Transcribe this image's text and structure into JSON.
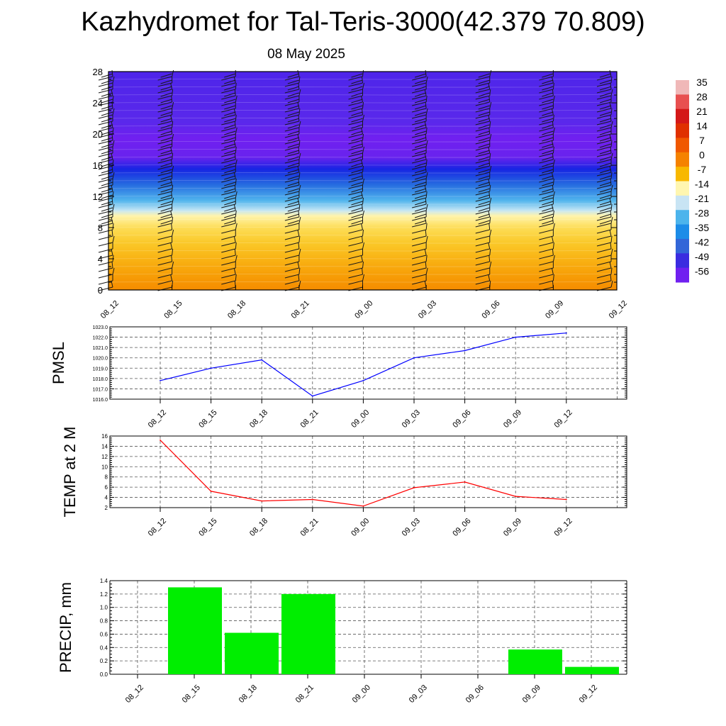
{
  "header": {
    "title": "Kazhydromet for Tal-Teris-3000(42.379 70.809)",
    "date": "08 May 2025"
  },
  "colors": {
    "pmsl_line": "#0000ff",
    "temp_line": "#ff0000",
    "precip_bar": "#00ee00",
    "grid": "#555555"
  },
  "chart_data": [
    {
      "type": "heatmap",
      "title": "Kazhydromet for Tal-Teris-3000(42.379 70.809)",
      "subtitle": "08 May 2025",
      "x": [
        "08_12",
        "08_15",
        "08_18",
        "08_21",
        "09_00",
        "09_03",
        "09_06",
        "09_09",
        "09_12"
      ],
      "yticks": [
        0,
        4,
        8,
        12,
        16,
        20,
        24,
        28
      ],
      "ylim": [
        0,
        28
      ],
      "colorbar_labels": [
        "35",
        "28",
        "21",
        "14",
        "7",
        "0",
        "-7",
        "-14",
        "-21",
        "-28",
        "-35",
        "-42",
        "-49",
        "-56"
      ],
      "colorbar_colors": [
        "#f0b8b8",
        "#e85050",
        "#d41818",
        "#e03000",
        "#f05800",
        "#f58200",
        "#f8b800",
        "#fff6b0",
        "#c8e4f4",
        "#4cb4ec",
        "#1c8ce8",
        "#3266d8",
        "#3a2ce0",
        "#7020f0"
      ],
      "layers": [
        {
          "z": 0,
          "temp": 16
        },
        {
          "z": 2,
          "temp": 12
        },
        {
          "z": 4,
          "temp": 8
        },
        {
          "z": 6,
          "temp": 4
        },
        {
          "z": 8,
          "temp": 0
        },
        {
          "z": 9.5,
          "temp": -6
        },
        {
          "z": 10.2,
          "temp": -16
        },
        {
          "z": 11.5,
          "temp": -26
        },
        {
          "z": 13.5,
          "temp": -38
        },
        {
          "z": 15.5,
          "temp": -48
        },
        {
          "z": 17,
          "temp": -60
        },
        {
          "z": 19.5,
          "temp": -62
        },
        {
          "z": 21.5,
          "temp": -56
        },
        {
          "z": 28,
          "temp": -55
        }
      ],
      "wind_barbs": true
    },
    {
      "type": "line",
      "ylabel": "PMSL",
      "x": [
        "08_12",
        "08_15",
        "08_18",
        "08_21",
        "09_00",
        "09_03",
        "09_06",
        "09_09",
        "09_12"
      ],
      "series": [
        {
          "values": [
            1017.8,
            1019.0,
            1019.8,
            1016.3,
            1017.8,
            1020.0,
            1020.7,
            1022.0,
            1022.4
          ]
        }
      ],
      "yticks": [
        "1016.0",
        "1017.0",
        "1018.0",
        "1019.0",
        "1020.0",
        "1021.0",
        "1022.0",
        "1023.0"
      ],
      "ylim": [
        1016,
        1023
      ],
      "grid": true
    },
    {
      "type": "line",
      "ylabel": "TEMP at 2 M",
      "x": [
        "08_12",
        "08_15",
        "08_18",
        "08_21",
        "09_00",
        "09_03",
        "09_06",
        "09_09",
        "09_12"
      ],
      "series": [
        {
          "values": [
            15.2,
            5.2,
            3.3,
            3.6,
            2.3,
            5.9,
            7.0,
            4.2,
            3.6
          ]
        }
      ],
      "yticks": [
        "2",
        "4",
        "6",
        "8",
        "10",
        "12",
        "14",
        "16"
      ],
      "ylim": [
        2,
        16
      ],
      "grid": true
    },
    {
      "type": "bar",
      "ylabel": "PRECIP, mm",
      "categories": [
        "08_12",
        "08_15",
        "08_18",
        "08_21",
        "09_00",
        "09_03",
        "09_06",
        "09_09",
        "09_12"
      ],
      "values": [
        0,
        1.3,
        0.62,
        1.2,
        0,
        0,
        0,
        0.37,
        0.11
      ],
      "yticks": [
        "0.0",
        "0.2",
        "0.4",
        "0.6",
        "0.8",
        "1.0",
        "1.2",
        "1.4"
      ],
      "ylim": [
        0,
        1.4
      ],
      "grid": true
    }
  ]
}
